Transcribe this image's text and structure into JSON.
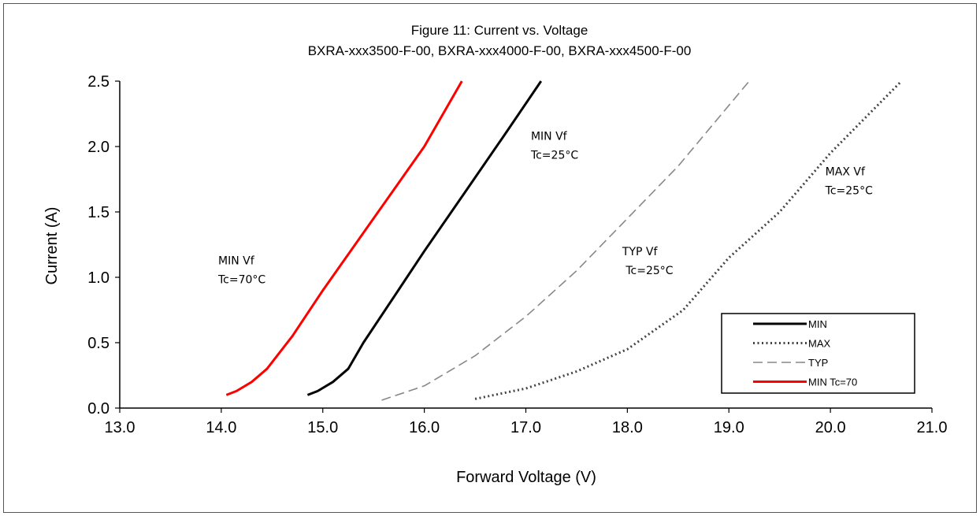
{
  "chart_data": {
    "type": "line",
    "title": "Figure 11:  Current vs. Voltage",
    "subtitle": "BXRA-xxx3500-F-00, BXRA-xxx4000-F-00, BXRA-xxx4500-F-00",
    "xlabel": "Forward  Voltage (V)",
    "ylabel": "Current  (A)",
    "xlim": [
      13.0,
      21.0
    ],
    "ylim": [
      0.0,
      2.5
    ],
    "xticks": [
      "13.0",
      "14.0",
      "15.0",
      "16.0",
      "17.0",
      "18.0",
      "19.0",
      "20.0",
      "21.0"
    ],
    "yticks": [
      "0.0",
      "0.5",
      "1.0",
      "1.5",
      "2.0",
      "2.5"
    ],
    "grid": false,
    "legend_position": "bottom-right",
    "series": [
      {
        "name": "MIN",
        "color": "#000000",
        "style": "solid",
        "x": [
          14.85,
          14.95,
          15.1,
          15.25,
          15.4,
          15.7,
          16.0,
          16.4,
          16.8,
          17.15
        ],
        "y": [
          0.1,
          0.13,
          0.2,
          0.3,
          0.5,
          0.85,
          1.2,
          1.65,
          2.1,
          2.5
        ]
      },
      {
        "name": "MAX",
        "color": "#444444",
        "style": "dotted",
        "x": [
          16.5,
          17.0,
          17.5,
          18.0,
          18.55,
          19.0,
          19.5,
          20.0,
          20.7
        ],
        "y": [
          0.07,
          0.15,
          0.28,
          0.45,
          0.75,
          1.15,
          1.5,
          1.95,
          2.5
        ]
      },
      {
        "name": "TYP",
        "color": "#888888",
        "style": "dashed",
        "x": [
          15.58,
          16.0,
          16.5,
          17.0,
          17.5,
          18.0,
          18.5,
          19.2
        ],
        "y": [
          0.06,
          0.17,
          0.4,
          0.7,
          1.05,
          1.45,
          1.85,
          2.5
        ]
      },
      {
        "name": "MIN Tc=70",
        "color": "#ff0000",
        "style": "solid",
        "x": [
          14.05,
          14.15,
          14.3,
          14.45,
          14.7,
          15.0,
          15.5,
          16.0,
          16.37
        ],
        "y": [
          0.1,
          0.13,
          0.2,
          0.3,
          0.55,
          0.9,
          1.45,
          2.0,
          2.5
        ]
      }
    ],
    "annotations": [
      {
        "lines": [
          "MIN Vf",
          "Tc=25°C"
        ],
        "x": 17.05,
        "y": 2.05
      },
      {
        "lines": [
          "MAX Vf",
          "Tc=25°C"
        ],
        "x": 19.95,
        "y": 1.78
      },
      {
        "lines": [
          "TYP Vf",
          " Tc=25°C"
        ],
        "x": 17.95,
        "y": 1.17
      },
      {
        "lines": [
          "MIN Vf",
          "Tc=70°C"
        ],
        "x": 13.97,
        "y": 1.1
      }
    ]
  }
}
